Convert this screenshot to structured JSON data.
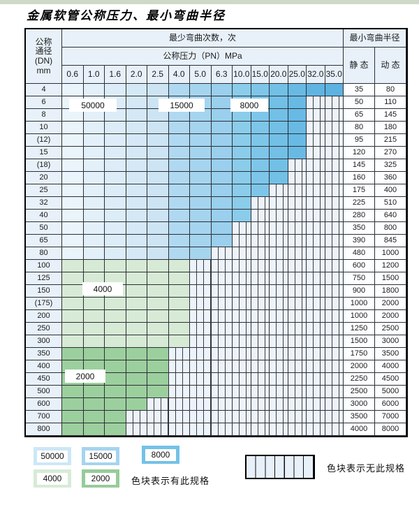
{
  "page": {
    "title": "金属软管公称压力、最小弯曲半径"
  },
  "table": {
    "header": {
      "dn_lines": [
        "公称",
        "通径",
        "(DN)",
        "mm"
      ],
      "bend_times": "最少弯曲次数，次",
      "min_radius": "最小弯曲半径",
      "pn": "公称压力（PN）MPa",
      "static_label": "静 态",
      "dynamic_label": "动 态"
    },
    "pn_columns": [
      "0.6",
      "1.0",
      "1.6",
      "2.0",
      "2.5",
      "4.0",
      "5.0",
      "6.3",
      "10.0",
      "15.0",
      "20.0",
      "25.0",
      "32.0",
      "35.0"
    ],
    "rows": [
      {
        "dn": "4",
        "max_pn": "35.0",
        "family": "blue",
        "static": "35",
        "dynamic": "80"
      },
      {
        "dn": "6",
        "max_pn": "25.0",
        "family": "blue",
        "static": "50",
        "dynamic": "110"
      },
      {
        "dn": "8",
        "max_pn": "25.0",
        "family": "blue",
        "static": "65",
        "dynamic": "145"
      },
      {
        "dn": "10",
        "max_pn": "25.0",
        "family": "blue",
        "static": "80",
        "dynamic": "180"
      },
      {
        "dn": "(12)",
        "max_pn": "25.0",
        "family": "blue",
        "static": "95",
        "dynamic": "215"
      },
      {
        "dn": "15",
        "max_pn": "25.0",
        "family": "blue",
        "static": "120",
        "dynamic": "270"
      },
      {
        "dn": "(18)",
        "max_pn": "20.0",
        "family": "blue",
        "static": "145",
        "dynamic": "325"
      },
      {
        "dn": "20",
        "max_pn": "20.0",
        "family": "blue",
        "static": "160",
        "dynamic": "360"
      },
      {
        "dn": "25",
        "max_pn": "15.0",
        "family": "blue",
        "static": "175",
        "dynamic": "400"
      },
      {
        "dn": "32",
        "max_pn": "10.0",
        "family": "blue",
        "static": "225",
        "dynamic": "510"
      },
      {
        "dn": "40",
        "max_pn": "10.0",
        "family": "blue",
        "static": "280",
        "dynamic": "640"
      },
      {
        "dn": "50",
        "max_pn": "6.3",
        "family": "blue",
        "static": "350",
        "dynamic": "800"
      },
      {
        "dn": "65",
        "max_pn": "6.3",
        "family": "blue",
        "static": "390",
        "dynamic": "845"
      },
      {
        "dn": "80",
        "max_pn": "5.0",
        "family": "blue",
        "static": "480",
        "dynamic": "1000"
      },
      {
        "dn": "100",
        "max_pn": "4.0",
        "family": "green4000",
        "static": "600",
        "dynamic": "1200"
      },
      {
        "dn": "125",
        "max_pn": "4.0",
        "family": "green4000",
        "static": "750",
        "dynamic": "1500"
      },
      {
        "dn": "150",
        "max_pn": "4.0",
        "family": "green4000",
        "static": "900",
        "dynamic": "1800"
      },
      {
        "dn": "(175)",
        "max_pn": "4.0",
        "family": "green4000",
        "static": "1000",
        "dynamic": "2000"
      },
      {
        "dn": "200",
        "max_pn": "4.0",
        "family": "green4000",
        "static": "1000",
        "dynamic": "2000"
      },
      {
        "dn": "250",
        "max_pn": "4.0",
        "family": "green4000",
        "static": "1250",
        "dynamic": "2500"
      },
      {
        "dn": "300",
        "max_pn": "4.0",
        "family": "green4000",
        "static": "1500",
        "dynamic": "3000"
      },
      {
        "dn": "350",
        "max_pn": "2.5",
        "family": "green2000",
        "static": "1750",
        "dynamic": "3500"
      },
      {
        "dn": "400",
        "max_pn": "2.5",
        "family": "green2000",
        "static": "2000",
        "dynamic": "4000"
      },
      {
        "dn": "450",
        "max_pn": "2.5",
        "family": "green2000",
        "static": "2250",
        "dynamic": "4500"
      },
      {
        "dn": "500",
        "max_pn": "2.5",
        "family": "green2000",
        "static": "2500",
        "dynamic": "5000"
      },
      {
        "dn": "600",
        "max_pn": "2.0",
        "family": "green2000",
        "static": "3000",
        "dynamic": "6000"
      },
      {
        "dn": "700",
        "max_pn": "1.6",
        "family": "green2000",
        "static": "3500",
        "dynamic": "7000"
      },
      {
        "dn": "800",
        "max_pn": "1.6",
        "family": "green2000",
        "static": "4000",
        "dynamic": "8000"
      }
    ]
  },
  "grid_labels": [
    {
      "text": "50000"
    },
    {
      "text": "15000"
    },
    {
      "text": "8000"
    },
    {
      "text": "4000"
    },
    {
      "text": "2000"
    }
  ],
  "legend": {
    "swatches": [
      {
        "label": "50000",
        "color": "#cde7f6"
      },
      {
        "label": "15000",
        "color": "#a5d4ef"
      },
      {
        "label": "8000",
        "color": "#74c1e7"
      },
      {
        "label": "4000",
        "color": "#d7ebd7"
      },
      {
        "label": "2000",
        "color": "#96cc99"
      }
    ],
    "has_spec_text": "色块表示有此规格",
    "no_spec_text": "色块表示无此规格"
  },
  "colors": {
    "blue_shades": [
      "#eaf4fb",
      "#e3f0fa",
      "#dcecf8",
      "#d4e8f6",
      "#cde4f4",
      "#b0d9f1",
      "#a5d4ef",
      "#9acfed",
      "#8accea",
      "#7ec6e9",
      "#72c0e6",
      "#68bae4",
      "#60b4e1",
      "#5cb2e0"
    ],
    "green_4000": "#d7ead5",
    "green_2000": "#9ccf9e",
    "header_bg": "#e8f1f9",
    "striped_bg": "#edf3fa",
    "grid_line": "#2b2f36",
    "top_strip": "#cfd9c8"
  }
}
